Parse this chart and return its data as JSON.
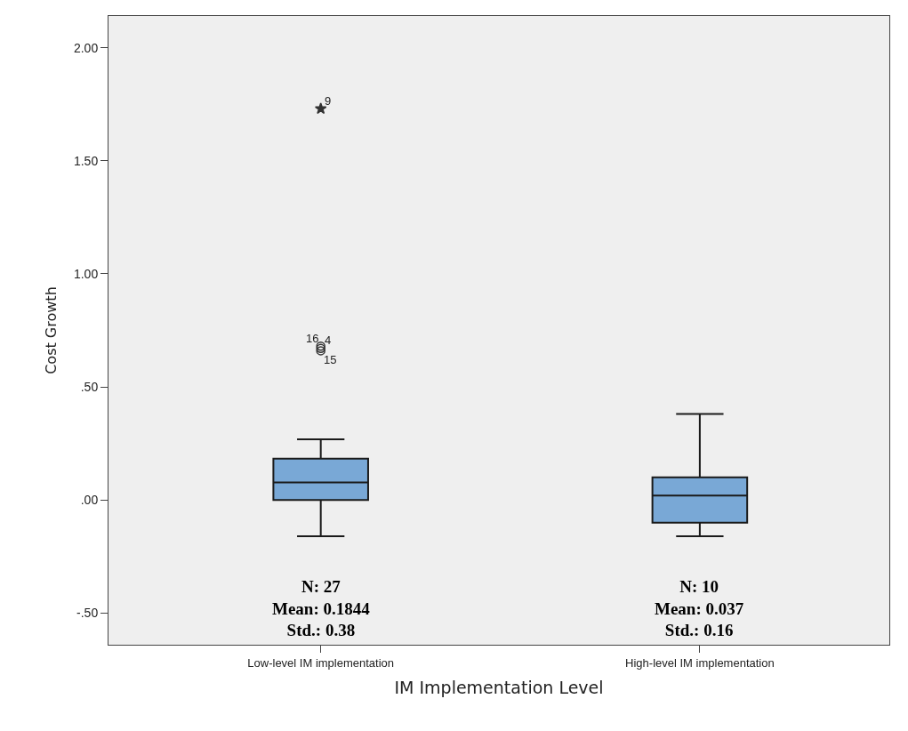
{
  "chart_data": {
    "type": "box",
    "xlabel": "IM Implementation Level",
    "ylabel": "Cost Growth",
    "categories": [
      "Low-level IM implementation",
      "High-level IM implementation"
    ],
    "boxes": [
      {
        "low": -0.16,
        "q1": 0.0,
        "median": 0.078,
        "q3": 0.183,
        "high": 0.268,
        "outliers": [
          1.73,
          0.68,
          0.67,
          0.66
        ]
      },
      {
        "low": -0.16,
        "q1": -0.1,
        "median": 0.02,
        "q3": 0.1,
        "high": 0.38
      }
    ],
    "color": "#79a8d6",
    "ylim": [
      -0.64,
      2.14
    ],
    "yticks": [
      {
        "value": -0.5,
        "label": "-.50"
      },
      {
        "value": 0,
        "label": ".00"
      },
      {
        "value": 0.5,
        "label": ".50"
      },
      {
        "value": 1.0,
        "label": "1.00"
      },
      {
        "value": 1.5,
        "label": "1.50"
      },
      {
        "value": 2.0,
        "label": "2.00"
      }
    ],
    "grid": false,
    "annotations": [
      "9",
      "16",
      "4",
      "15",
      "N: 27\nMean: 0.1844\nStd.: 0.38",
      "N: 10\nMean: 0.037\nStd.: 0.16"
    ]
  }
}
